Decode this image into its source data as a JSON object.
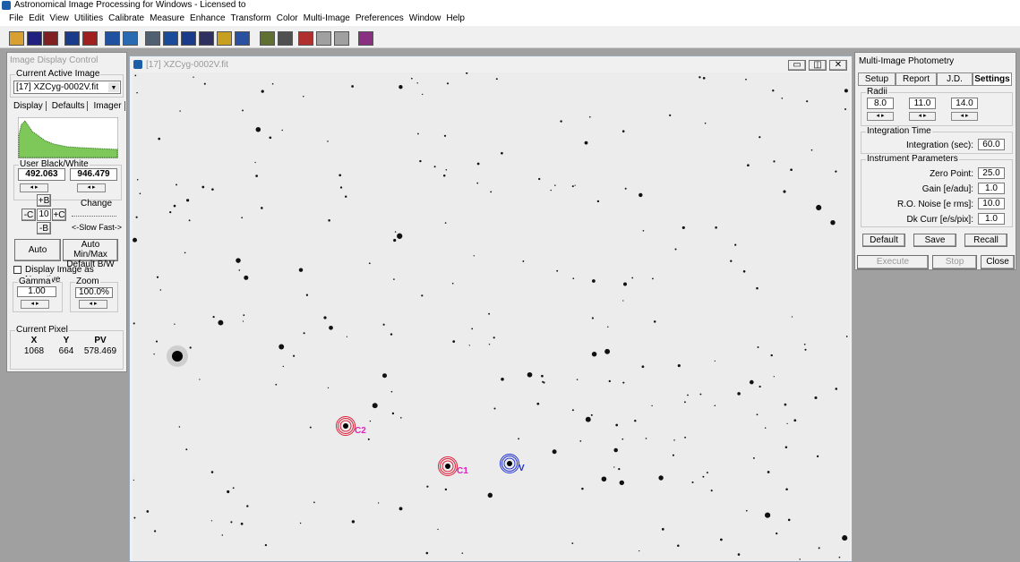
{
  "app": {
    "title": "Astronomical Image Processing for Windows - Licensed to",
    "menu": [
      "File",
      "Edit",
      "View",
      "Utilities",
      "Calibrate",
      "Measure",
      "Enhance",
      "Transform",
      "Color",
      "Multi-Image",
      "Preferences",
      "Window",
      "Help"
    ]
  },
  "display_control": {
    "title": "Image Display Control",
    "active_label": "Current Active Image",
    "active_image": "[17] XZCyg-0002V.fit",
    "tabs": [
      "Display",
      "Defaults",
      "Imager"
    ],
    "bw_label": "User Black/White",
    "black": "492.063",
    "white": "946.479",
    "plus_b": "+B",
    "minus_c": "-C",
    "step": "10",
    "plus_c": "+C",
    "minus_b": "-B",
    "change": "Change",
    "speed": "<-Slow Fast->",
    "auto": "Auto",
    "auto_minmax": "Auto Min/Max",
    "default_bw": "Default B/W",
    "negative": "Display Image as Negative",
    "gamma_label": "Gamma",
    "gamma": "1.00",
    "zoom_label": "Zoom",
    "zoom": "100.0%",
    "pixel_label": "Current Pixel",
    "pixel_headers": [
      "X",
      "Y",
      "PV"
    ],
    "pixel_values": [
      "1068",
      "664",
      "578.469"
    ]
  },
  "image_window": {
    "title": "[17] XZCyg-0002V.fit",
    "labels": [
      "C2",
      "C1",
      "V"
    ]
  },
  "photometry": {
    "title": "Multi-Image Photometry",
    "tabs": [
      "Setup",
      "Report",
      "J.D.",
      "Settings"
    ],
    "radii_label": "Radii",
    "radii": [
      "8.0",
      "11.0",
      "14.0"
    ],
    "integration_group": "Integration Time",
    "integration_label": "Integration (sec):",
    "integration": "60.0",
    "instrument_group": "Instrument Parameters",
    "params": [
      {
        "label": "Zero Point:",
        "value": "25.0"
      },
      {
        "label": "Gain [e/adu]:",
        "value": "1.0"
      },
      {
        "label": "R.O. Noise [e rms]:",
        "value": "10.0"
      },
      {
        "label": "Dk Curr [e/s/pix]:",
        "value": "1.0"
      }
    ],
    "buttons": [
      "Default",
      "Save",
      "Recall"
    ],
    "actions": [
      "Execute",
      "Stop",
      "Close"
    ]
  }
}
